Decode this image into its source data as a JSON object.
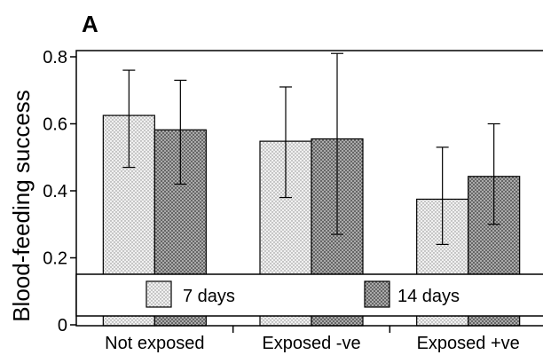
{
  "panel_label": "A",
  "chart_data": {
    "type": "bar",
    "title": "",
    "xlabel": "",
    "ylabel": "Blood-feeding success",
    "ylim": [
      0,
      0.8
    ],
    "yticks": [
      0,
      0.2,
      0.4,
      0.6,
      0.8
    ],
    "ytick_labels": [
      "0",
      "0.2",
      "0.4",
      "0.6",
      "0.8"
    ],
    "categories": [
      "Not exposed",
      "Exposed -ve",
      "Exposed +ve"
    ],
    "series": [
      {
        "name": "7 days",
        "values": [
          0.625,
          0.548,
          0.375
        ],
        "error_low": [
          0.47,
          0.38,
          0.24
        ],
        "error_high": [
          0.76,
          0.71,
          0.53
        ],
        "fill": "#e8e8e8",
        "pattern": "light-dots"
      },
      {
        "name": "14 days",
        "values": [
          0.582,
          0.555,
          0.443
        ],
        "error_low": [
          0.42,
          0.27,
          0.3
        ],
        "error_high": [
          0.73,
          0.81,
          0.6
        ],
        "fill": "#6e6e6e",
        "pattern": "dark-crosshatch"
      }
    ],
    "grid": false,
    "legend_position": "bottom-inside"
  }
}
